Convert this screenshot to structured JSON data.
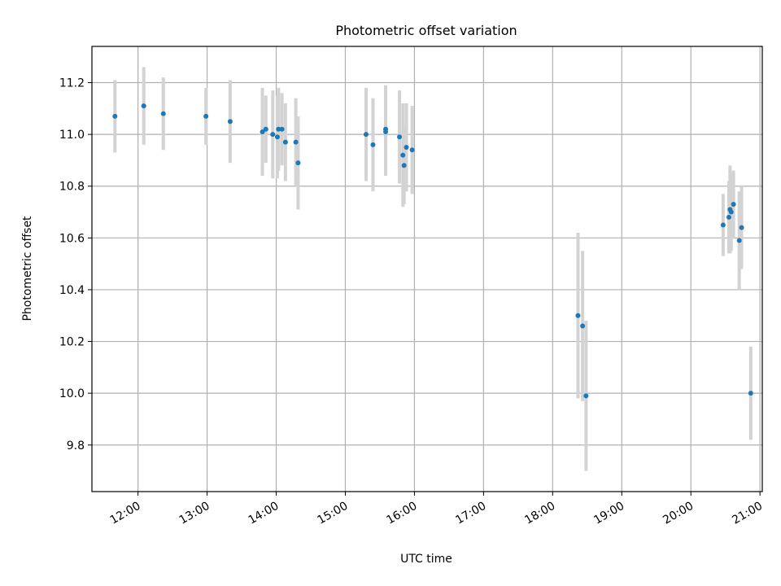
{
  "chart_data": {
    "type": "scatter",
    "title": "Photometric offset variation",
    "xlabel": "UTC time",
    "ylabel": "Photometric offset",
    "x_axis": {
      "kind": "time",
      "range": [
        "11:20",
        "21:02"
      ],
      "ticks": [
        "12:00",
        "13:00",
        "14:00",
        "15:00",
        "16:00",
        "17:00",
        "18:00",
        "19:00",
        "20:00",
        "21:00"
      ],
      "tick_label_rotation": "30deg"
    },
    "y_axis": {
      "range": [
        9.62,
        11.34
      ],
      "ticks": [
        "9.8",
        "10.0",
        "10.2",
        "10.4",
        "10.6",
        "10.8",
        "11.0",
        "11.2"
      ]
    },
    "grid": true,
    "point_color": "#1f77b4",
    "errorbar_color": "#d3d3d3",
    "points": [
      {
        "x": "11:40",
        "y": 11.07,
        "err": 0.14
      },
      {
        "x": "12:05",
        "y": 11.11,
        "err": 0.15
      },
      {
        "x": "12:22",
        "y": 11.08,
        "err": 0.14
      },
      {
        "x": "12:59",
        "y": 11.07,
        "err": 0.11
      },
      {
        "x": "13:20",
        "y": 11.05,
        "err": 0.16
      },
      {
        "x": "13:48",
        "y": 11.01,
        "err": 0.17
      },
      {
        "x": "13:51",
        "y": 11.02,
        "err": 0.13
      },
      {
        "x": "13:57",
        "y": 11.0,
        "err": 0.17
      },
      {
        "x": "14:01",
        "y": 10.99,
        "err": 0.16
      },
      {
        "x": "14:02",
        "y": 11.02,
        "err": 0.16
      },
      {
        "x": "14:05",
        "y": 11.02,
        "err": 0.14
      },
      {
        "x": "14:08",
        "y": 10.97,
        "err": 0.15
      },
      {
        "x": "14:17",
        "y": 10.97,
        "err": 0.17
      },
      {
        "x": "14:19",
        "y": 10.89,
        "err": 0.18
      },
      {
        "x": "15:18",
        "y": 11.0,
        "err": 0.18
      },
      {
        "x": "15:24",
        "y": 10.96,
        "err": 0.18
      },
      {
        "x": "15:35",
        "y": 11.02,
        "err": 0.17
      },
      {
        "x": "15:35",
        "y": 11.01,
        "err": 0.17
      },
      {
        "x": "15:47",
        "y": 10.99,
        "err": 0.18
      },
      {
        "x": "15:50",
        "y": 10.92,
        "err": 0.2
      },
      {
        "x": "15:51",
        "y": 10.88,
        "err": 0.15
      },
      {
        "x": "15:53",
        "y": 10.95,
        "err": 0.17
      },
      {
        "x": "15:58",
        "y": 10.94,
        "err": 0.17
      },
      {
        "x": "18:22",
        "y": 10.3,
        "err": 0.32
      },
      {
        "x": "18:26",
        "y": 10.26,
        "err": 0.29
      },
      {
        "x": "18:29",
        "y": 9.99,
        "err": 0.29
      },
      {
        "x": "20:28",
        "y": 10.65,
        "err": 0.12
      },
      {
        "x": "20:33",
        "y": 10.68,
        "err": 0.14
      },
      {
        "x": "20:34",
        "y": 10.71,
        "err": 0.17
      },
      {
        "x": "20:35",
        "y": 10.7,
        "err": 0.15
      },
      {
        "x": "20:37",
        "y": 10.73,
        "err": 0.13
      },
      {
        "x": "20:42",
        "y": 10.59,
        "err": 0.19
      },
      {
        "x": "20:44",
        "y": 10.64,
        "err": 0.16
      },
      {
        "x": "20:52",
        "y": 10.0,
        "err": 0.18
      }
    ]
  }
}
